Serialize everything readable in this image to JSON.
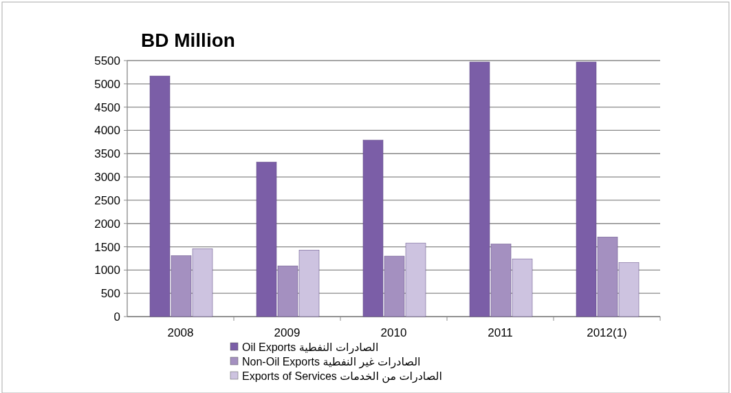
{
  "chart_data": {
    "type": "bar",
    "title": "BD Million",
    "categories": [
      "2008",
      "2009",
      "2010",
      "2011",
      "2012(1)"
    ],
    "series": [
      {
        "name": "Oil Exports الصادرات النفطية",
        "color": "#7b5ea7",
        "values": [
          5170,
          3320,
          3790,
          5470,
          5470
        ]
      },
      {
        "name": "Non-Oil Exports الصادرات غير النفطية",
        "color": "#a490c0",
        "values": [
          1310,
          1090,
          1300,
          1560,
          1710
        ]
      },
      {
        "name": "Exports of Services الصادرات  من الخدمات",
        "color": "#cdc3e0",
        "values": [
          1460,
          1430,
          1580,
          1240,
          1160
        ]
      }
    ],
    "ylim": [
      0,
      5500
    ],
    "yticks": [
      0,
      500,
      1000,
      1500,
      2000,
      2500,
      3000,
      3500,
      4000,
      4500,
      5000,
      5500
    ],
    "grid": "y",
    "legend": "bottom"
  }
}
